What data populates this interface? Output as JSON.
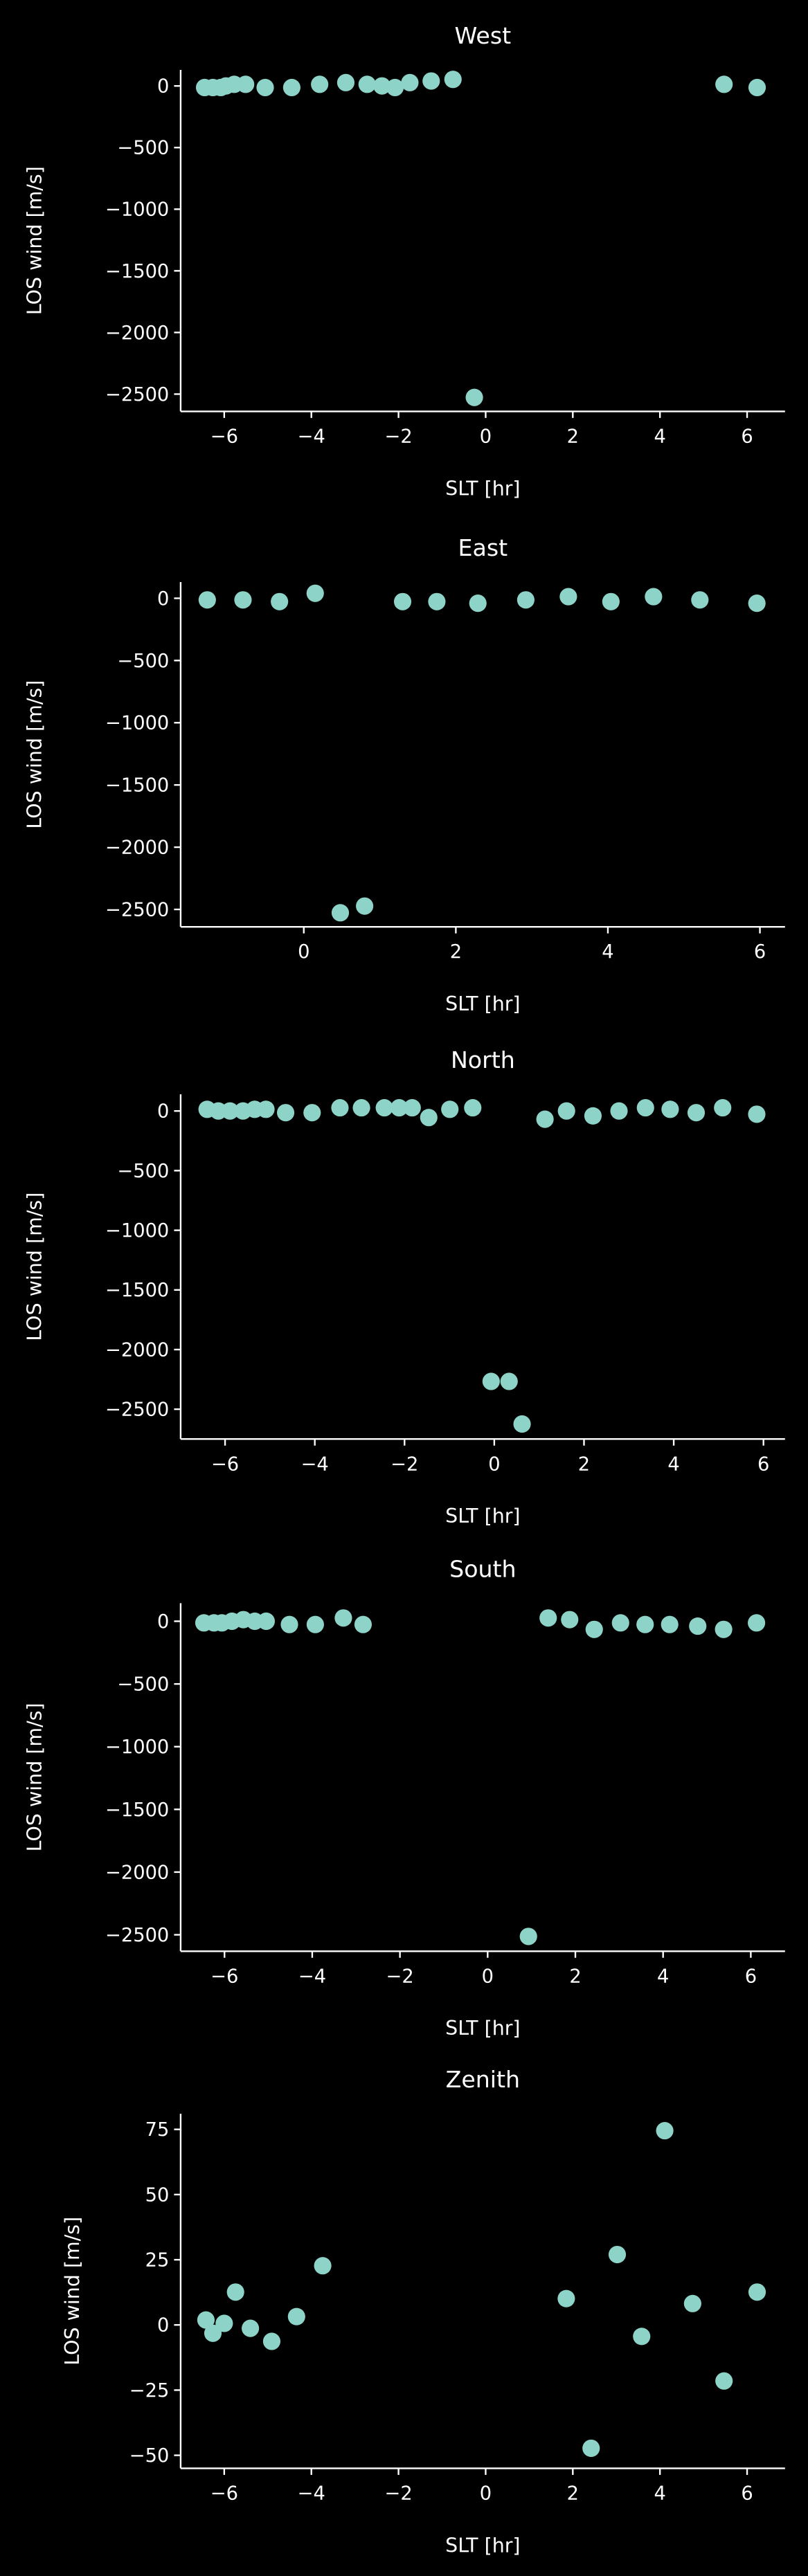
{
  "chart_data": [
    {
      "type": "scatter",
      "title": "West",
      "x_label": "SLT [hr]",
      "y_label": "LOS wind [m/s]",
      "color": "#8dd3c7",
      "x": [
        -6.45,
        -6.26,
        -6.08,
        -5.96,
        -5.77,
        -5.51,
        -5.06,
        -4.45,
        -3.81,
        -3.21,
        -2.72,
        -2.38,
        -2.08,
        -1.74,
        -1.25,
        -0.75,
        -0.26,
        5.47,
        6.23
      ],
      "y": [
        -13,
        -13,
        -13,
        0,
        13,
        13,
        -13,
        -13,
        13,
        27,
        13,
        0,
        -13,
        27,
        40,
        53,
        -2527,
        13,
        -13
      ],
      "xlim": [
        -7.0,
        6.87
      ],
      "ylim": [
        -2640,
        130
      ],
      "xticks": [
        {
          "value": -6,
          "label": "−6"
        },
        {
          "value": -4,
          "label": "−4"
        },
        {
          "value": -2,
          "label": "−2"
        },
        0,
        2,
        4,
        6
      ],
      "yticks": [
        0,
        {
          "value": -500,
          "label": "−500"
        },
        {
          "value": -1000,
          "label": "−1000"
        },
        {
          "value": -1500,
          "label": "−1500"
        },
        {
          "value": -2000,
          "label": "−2000"
        },
        {
          "value": -2500,
          "label": "−2500"
        }
      ]
    },
    {
      "type": "scatter",
      "title": "East",
      "x_label": "SLT [hr]",
      "y_label": "LOS wind [m/s]",
      "color": "#8dd3c7",
      "x": [
        -1.27,
        -0.8,
        -0.32,
        0.15,
        0.48,
        0.8,
        1.3,
        1.75,
        2.29,
        2.92,
        3.48,
        4.04,
        4.6,
        5.21,
        5.96
      ],
      "y": [
        -13,
        -13,
        -27,
        40,
        -2527,
        -2473,
        -27,
        -27,
        -40,
        -13,
        13,
        -27,
        13,
        -13,
        -40
      ],
      "xlim": [
        -1.62,
        6.33
      ],
      "ylim": [
        -2640,
        130
      ],
      "xticks": [
        0,
        2,
        4,
        6
      ],
      "yticks": [
        0,
        {
          "value": -500,
          "label": "−500"
        },
        {
          "value": -1000,
          "label": "−1000"
        },
        {
          "value": -1500,
          "label": "−1500"
        },
        {
          "value": -2000,
          "label": "−2000"
        },
        {
          "value": -2500,
          "label": "−2500"
        }
      ]
    },
    {
      "type": "scatter",
      "title": "North",
      "x_label": "SLT [hr]",
      "y_label": "LOS wind [m/s]",
      "color": "#8dd3c7",
      "x": [
        -6.4,
        -6.15,
        -5.89,
        -5.6,
        -5.34,
        -5.09,
        -4.65,
        -4.06,
        -3.44,
        -2.96,
        -2.45,
        -2.12,
        -1.83,
        -1.46,
        -0.99,
        -0.48,
        -0.07,
        0.33,
        0.62,
        1.13,
        1.61,
        2.2,
        2.78,
        3.37,
        3.92,
        4.5,
        5.09,
        5.85
      ],
      "y": [
        14,
        0,
        0,
        0,
        14,
        14,
        -14,
        -14,
        27,
        27,
        27,
        27,
        27,
        -55,
        14,
        27,
        -2267,
        -2267,
        -2624,
        -69,
        0,
        -41,
        0,
        27,
        14,
        -14,
        27,
        -27
      ],
      "xlim": [
        -6.99,
        6.48
      ],
      "ylim": [
        -2750,
        140
      ],
      "xticks": [
        {
          "value": -6,
          "label": "−6"
        },
        {
          "value": -4,
          "label": "−4"
        },
        {
          "value": -2,
          "label": "−2"
        },
        0,
        2,
        4,
        6
      ],
      "yticks": [
        0,
        {
          "value": -500,
          "label": "−500"
        },
        {
          "value": -1000,
          "label": "−1000"
        },
        {
          "value": -1500,
          "label": "−1500"
        },
        {
          "value": -2000,
          "label": "−2000"
        },
        {
          "value": -2500,
          "label": "−2500"
        }
      ]
    },
    {
      "type": "scatter",
      "title": "South",
      "x_label": "SLT [hr]",
      "y_label": "LOS wind [m/s]",
      "color": "#8dd3c7",
      "x": [
        -6.47,
        -6.24,
        -6.06,
        -5.83,
        -5.57,
        -5.31,
        -5.05,
        -4.52,
        -3.93,
        -3.29,
        -2.84,
        0.93,
        1.38,
        1.87,
        2.43,
        3.03,
        3.59,
        4.15,
        4.79,
        5.38,
        6.13
      ],
      "y": [
        -13,
        -13,
        -13,
        0,
        13,
        0,
        0,
        -26,
        -26,
        26,
        -26,
        -2513,
        26,
        13,
        -65,
        -13,
        -26,
        -26,
        -39,
        -65,
        -13
      ],
      "xlim": [
        -7.0,
        6.78
      ],
      "ylim": [
        -2631,
        144
      ],
      "xticks": [
        {
          "value": -6,
          "label": "−6"
        },
        {
          "value": -4,
          "label": "−4"
        },
        {
          "value": -2,
          "label": "−2"
        },
        0,
        2,
        4,
        6
      ],
      "yticks": [
        0,
        {
          "value": -500,
          "label": "−500"
        },
        {
          "value": -1000,
          "label": "−1000"
        },
        {
          "value": -1500,
          "label": "−1500"
        },
        {
          "value": -2000,
          "label": "−2000"
        },
        {
          "value": -2500,
          "label": "−2500"
        }
      ]
    },
    {
      "type": "scatter",
      "title": "Zenith",
      "x_label": "SLT [hr]",
      "y_label": "LOS wind [m/s]",
      "color": "#8dd3c7",
      "x": [
        -6.42,
        -6.26,
        -6.0,
        -5.74,
        -5.4,
        -4.91,
        -4.34,
        -3.74,
        1.85,
        2.42,
        3.02,
        3.58,
        4.11,
        4.75,
        5.47,
        6.23
      ],
      "y": [
        1.9,
        -3.2,
        0.6,
        12.6,
        -1.3,
        -6.3,
        3.2,
        22.7,
        10.1,
        -47.3,
        27,
        -4.4,
        74.5,
        8.2,
        -21.5,
        12.6
      ],
      "xlim": [
        -7.0,
        6.87
      ],
      "ylim": [
        -55,
        81
      ],
      "xticks": [
        {
          "value": -6,
          "label": "−6"
        },
        {
          "value": -4,
          "label": "−4"
        },
        {
          "value": -2,
          "label": "−2"
        },
        0,
        2,
        4,
        6
      ],
      "yticks": [
        {
          "value": -50,
          "label": "−50"
        },
        {
          "value": -25,
          "label": "−25"
        },
        0,
        25,
        50,
        75
      ]
    }
  ]
}
